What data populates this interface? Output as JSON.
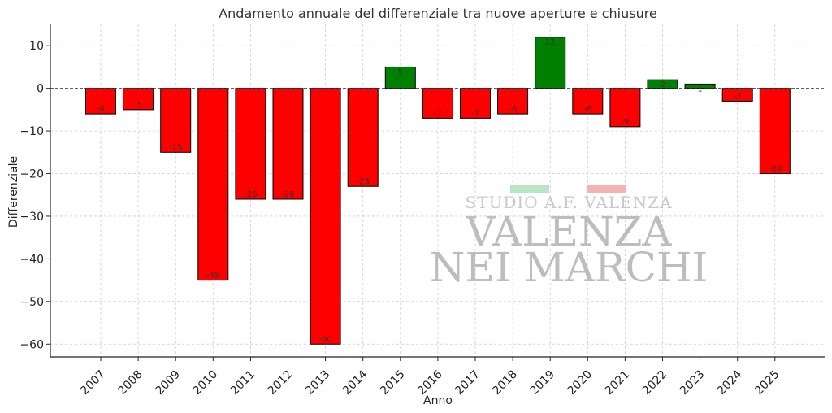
{
  "chart_data": {
    "type": "bar",
    "title": "Andamento annuale del differenziale tra nuove aperture e chiusure",
    "xlabel": "Anno",
    "ylabel": "Differenziale",
    "categories": [
      "2007",
      "2008",
      "2009",
      "2010",
      "2011",
      "2012",
      "2013",
      "2014",
      "2015",
      "2016",
      "2017",
      "2018",
      "2019",
      "2020",
      "2021",
      "2022",
      "2023",
      "2024",
      "2025"
    ],
    "values": [
      -6,
      -5,
      -15,
      -45,
      -26,
      -26,
      -60,
      -23,
      5,
      -7,
      -7,
      -6,
      12,
      -6,
      -9,
      2,
      1,
      -3,
      -20
    ],
    "ylim": [
      -63,
      15
    ],
    "yticks": [
      10,
      0,
      -10,
      -20,
      -30,
      -40,
      -50,
      -60
    ],
    "grid": true,
    "colors": {
      "positive": "#008000",
      "negative": "#ff0000",
      "edge": "#000000"
    },
    "zero_line": "dashed"
  },
  "watermark": {
    "line1": "STUDIO A.F. VALENZA",
    "line2": "VALENZA",
    "line3": "NEI MARCHI",
    "flag_colors": [
      "#b8e6c4",
      "#f4b3b3"
    ]
  }
}
